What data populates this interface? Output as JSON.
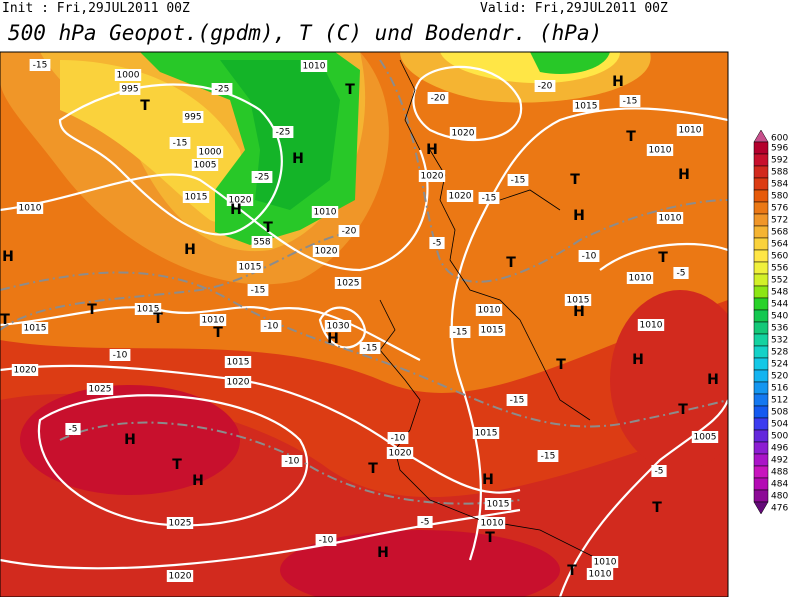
{
  "header": {
    "init": "Init : Fri,29JUL2011 00Z",
    "valid": "Valid: Fri,29JUL2011 00Z",
    "title": "500 hPa Geopot.(gpdm), T (C) und Bodendr. (hPa)"
  },
  "colorbar": {
    "levels": [
      600,
      596,
      592,
      588,
      584,
      580,
      576,
      572,
      568,
      564,
      560,
      556,
      552,
      548,
      544,
      540,
      536,
      532,
      528,
      524,
      520,
      516,
      512,
      508,
      504,
      500,
      496,
      492,
      488,
      484,
      480,
      476
    ],
    "colors": [
      "#c8508c",
      "#b4002d",
      "#c8102d",
      "#d22a1e",
      "#dc3c14",
      "#e65a0a",
      "#eb7814",
      "#f09628",
      "#f5b432",
      "#fad23c",
      "#ffe646",
      "#f0f03c",
      "#d2f028",
      "#8ce614",
      "#28d228",
      "#14c850",
      "#14c878",
      "#14d2a0",
      "#14d2c8",
      "#14c8e6",
      "#14b4f0",
      "#1496f0",
      "#1478f0",
      "#145af0",
      "#3c3cf0",
      "#6428dc",
      "#8c1ed2",
      "#aa14c8",
      "#c814be",
      "#b40ab4",
      "#8c0a96",
      "#640a78"
    ]
  },
  "map": {
    "pressure_labels": [
      "1010",
      "1000",
      "995",
      "995",
      "1000",
      "1005",
      "1015",
      "1020",
      "1010",
      "1020",
      "1015",
      "1010",
      "1025",
      "1015",
      "1015",
      "1010",
      "1030",
      "1020",
      "1015",
      "1020",
      "1025",
      "1020",
      "1025",
      "1020",
      "1015",
      "1015",
      "1010",
      "1010",
      "1010",
      "1005",
      "1020",
      "1015",
      "1010",
      "1010",
      "1020",
      "1020",
      "1010",
      "1010",
      "1015",
      "1010",
      "1015",
      "1010",
      "558"
    ],
    "temperature_labels": [
      "-15",
      "-25",
      "-25",
      "-25",
      "-15",
      "-20",
      "-15",
      "-10",
      "-15",
      "-10",
      "-5",
      "-10",
      "-10",
      "-10",
      "-5",
      "-5",
      "-5",
      "-20",
      "-15",
      "-15",
      "-15",
      "-10",
      "-5",
      "-15",
      "-15",
      "-15",
      "-20"
    ],
    "centers": [
      "H",
      "T",
      "H",
      "H",
      "T",
      "H",
      "T",
      "T",
      "T",
      "H",
      "T",
      "H",
      "T",
      "H",
      "T",
      "H",
      "H",
      "T",
      "H",
      "T",
      "H",
      "T",
      "H",
      "T",
      "H",
      "T",
      "H",
      "T",
      "H",
      "T",
      "T",
      "H",
      "T",
      "T"
    ]
  }
}
